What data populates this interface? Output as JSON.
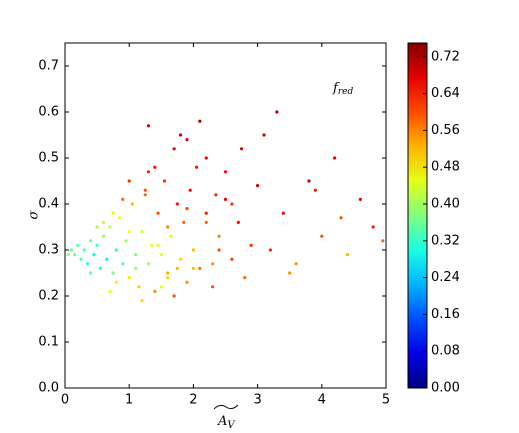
{
  "chart_data": {
    "type": "scatter",
    "x_label": "A",
    "x_label_subscript": "V",
    "y_label": "σ",
    "annotation": "f",
    "annotation_subscript": "red",
    "xlim": [
      0,
      5
    ],
    "ylim": [
      0,
      0.75
    ],
    "xticks": [
      0,
      1,
      2,
      3,
      4,
      5
    ],
    "yticks": [
      {
        "value": 0,
        "label": "0.0"
      },
      0.1,
      0.2,
      0.3,
      0.4,
      0.5,
      0.6,
      0.7
    ],
    "colormap": "jet",
    "colorbar": {
      "lim": [
        0,
        0.75
      ],
      "ticks": [
        {
          "value": 0,
          "label": "0.00"
        },
        0.08,
        0.16,
        0.24,
        0.32,
        {
          "value": 0.4,
          "label": "0.40"
        },
        0.48,
        0.56,
        0.64,
        0.72
      ]
    },
    "series": [
      {
        "x": [
          0.05,
          0.1,
          0.15,
          0.2,
          0.25,
          0.3,
          0.35,
          0.4,
          0.45,
          0.5,
          0.55,
          0.6,
          0.65,
          0.7,
          0.75,
          0.8,
          0.85,
          0.9,
          0.95,
          1.0,
          1.05,
          1.1,
          1.15,
          1.2,
          1.25,
          1.3,
          1.35,
          1.4,
          1.45,
          1.5,
          1.55,
          1.6,
          1.65,
          1.7,
          1.75,
          1.8,
          1.85,
          1.9,
          1.95,
          2.0,
          2.1,
          2.2,
          2.3,
          2.4,
          2.5,
          2.6,
          2.7,
          2.8,
          2.9,
          3.0,
          3.2,
          3.4,
          3.6,
          3.8,
          4.0,
          4.2,
          4.4,
          4.6,
          4.8,
          4.95,
          0.6,
          0.8,
          1.0,
          1.2,
          1.4,
          1.6,
          1.8,
          2.0,
          2.2,
          2.4,
          0.7,
          0.9,
          1.1,
          1.3,
          1.5,
          1.7,
          1.9,
          2.1,
          2.3,
          2.5,
          1.0,
          1.3,
          1.6,
          1.9,
          2.2,
          2.6,
          3.1,
          3.5,
          3.9,
          4.3,
          0.4,
          0.5,
          0.75,
          1.25,
          1.45,
          1.75,
          2.05,
          2.35,
          2.75,
          3.3
        ],
        "values": [
          0.29,
          0.3,
          0.29,
          0.31,
          0.28,
          0.3,
          0.27,
          0.32,
          0.29,
          0.31,
          0.26,
          0.33,
          0.28,
          0.35,
          0.25,
          0.3,
          0.37,
          0.27,
          0.32,
          0.24,
          0.4,
          0.29,
          0.22,
          0.34,
          0.42,
          0.27,
          0.31,
          0.21,
          0.38,
          0.29,
          0.45,
          0.25,
          0.33,
          0.2,
          0.4,
          0.28,
          0.36,
          0.23,
          0.43,
          0.3,
          0.26,
          0.38,
          0.22,
          0.33,
          0.41,
          0.28,
          0.36,
          0.24,
          0.31,
          0.44,
          0.3,
          0.38,
          0.27,
          0.45,
          0.33,
          0.5,
          0.29,
          0.41,
          0.35,
          0.32,
          0.36,
          0.23,
          0.45,
          0.19,
          0.48,
          0.35,
          0.55,
          0.26,
          0.5,
          0.3,
          0.21,
          0.41,
          0.26,
          0.47,
          0.22,
          0.52,
          0.39,
          0.58,
          0.27,
          0.47,
          0.34,
          0.57,
          0.24,
          0.54,
          0.36,
          0.4,
          0.55,
          0.25,
          0.43,
          0.37,
          0.25,
          0.35,
          0.38,
          0.43,
          0.31,
          0.26,
          0.48,
          0.42,
          0.52,
          0.6
        ],
        "color_values": [
          0.38,
          0.36,
          0.37,
          0.35,
          0.34,
          0.33,
          0.3,
          0.36,
          0.29,
          0.33,
          0.31,
          0.38,
          0.28,
          0.42,
          0.36,
          0.3,
          0.45,
          0.33,
          0.4,
          0.48,
          0.52,
          0.37,
          0.5,
          0.44,
          0.58,
          0.4,
          0.46,
          0.55,
          0.6,
          0.45,
          0.62,
          0.53,
          0.48,
          0.6,
          0.64,
          0.5,
          0.58,
          0.55,
          0.66,
          0.52,
          0.57,
          0.64,
          0.6,
          0.56,
          0.68,
          0.61,
          0.65,
          0.58,
          0.62,
          0.7,
          0.63,
          0.67,
          0.55,
          0.7,
          0.6,
          0.68,
          0.52,
          0.66,
          0.64,
          0.58,
          0.42,
          0.48,
          0.62,
          0.5,
          0.65,
          0.56,
          0.7,
          0.52,
          0.67,
          0.6,
          0.45,
          0.58,
          0.4,
          0.63,
          0.46,
          0.68,
          0.6,
          0.72,
          0.55,
          0.66,
          0.47,
          0.7,
          0.5,
          0.67,
          0.58,
          0.62,
          0.69,
          0.55,
          0.64,
          0.6,
          0.35,
          0.4,
          0.48,
          0.6,
          0.44,
          0.52,
          0.65,
          0.63,
          0.68,
          0.71
        ]
      }
    ]
  }
}
